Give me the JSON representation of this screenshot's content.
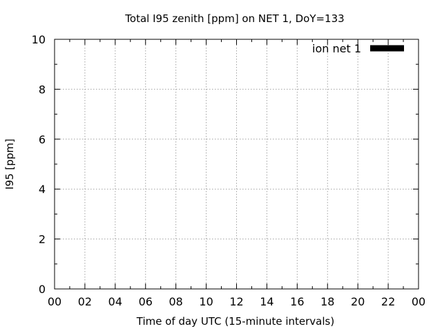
{
  "chart_data": {
    "type": "line",
    "title": "Total I95 zenith [ppm] on NET 1, DoY=133",
    "xlabel": "Time of day UTC (15-minute intervals)",
    "ylabel": "I95 [ppm]",
    "x_tick_labels": [
      "00",
      "02",
      "04",
      "06",
      "08",
      "10",
      "12",
      "14",
      "16",
      "18",
      "20",
      "22",
      "00"
    ],
    "x_range_hours": [
      0,
      24
    ],
    "x_minor_tick_step_hours": 1,
    "y_ticks": [
      0,
      2,
      4,
      6,
      8,
      10
    ],
    "ylim": [
      0,
      10
    ],
    "y_minor_tick_step": 1,
    "grid": true,
    "legend_position": "top-right",
    "series": [
      {
        "name": "ion net 1",
        "color": "#000000",
        "x": [],
        "y": []
      }
    ]
  }
}
